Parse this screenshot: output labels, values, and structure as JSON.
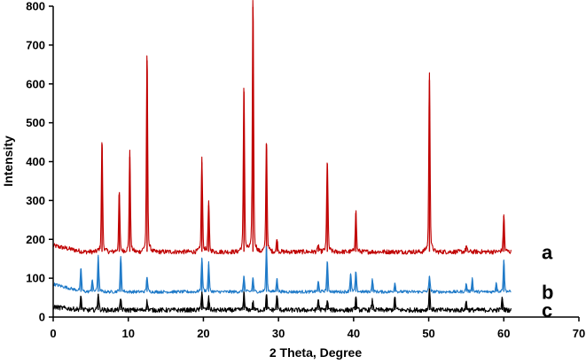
{
  "chart_data": {
    "type": "line",
    "title": "",
    "xlabel": "2 Theta, Degree",
    "ylabel": "Intensity",
    "xlim": [
      0,
      70
    ],
    "ylim": [
      0,
      800
    ],
    "x_ticks": [
      0,
      10,
      20,
      30,
      40,
      50,
      60,
      70
    ],
    "y_ticks": [
      0,
      100,
      200,
      300,
      400,
      500,
      600,
      700,
      800
    ],
    "grid": false,
    "legend": "inline labels at right end of each trace",
    "series": [
      {
        "name": "a",
        "color": "#c00000",
        "baseline": 168,
        "x_range": [
          0,
          61
        ],
        "peaks": [
          {
            "x": 6.5,
            "y": 445
          },
          {
            "x": 8.8,
            "y": 315
          },
          {
            "x": 10.2,
            "y": 412
          },
          {
            "x": 12.5,
            "y": 660
          },
          {
            "x": 19.8,
            "y": 398
          },
          {
            "x": 20.7,
            "y": 287
          },
          {
            "x": 25.4,
            "y": 580
          },
          {
            "x": 26.6,
            "y": 798
          },
          {
            "x": 28.4,
            "y": 445
          },
          {
            "x": 29.8,
            "y": 200
          },
          {
            "x": 35.3,
            "y": 185
          },
          {
            "x": 36.5,
            "y": 395
          },
          {
            "x": 40.3,
            "y": 268
          },
          {
            "x": 50.1,
            "y": 610
          },
          {
            "x": 55.0,
            "y": 182
          },
          {
            "x": 60.0,
            "y": 260
          }
        ]
      },
      {
        "name": "b",
        "color": "#1f7ac8",
        "baseline": 65,
        "x_range": [
          0,
          61
        ],
        "peaks": [
          {
            "x": 3.7,
            "y": 122
          },
          {
            "x": 5.2,
            "y": 95
          },
          {
            "x": 6.0,
            "y": 155
          },
          {
            "x": 9.0,
            "y": 150
          },
          {
            "x": 12.5,
            "y": 103
          },
          {
            "x": 19.8,
            "y": 150
          },
          {
            "x": 20.7,
            "y": 135
          },
          {
            "x": 25.4,
            "y": 105
          },
          {
            "x": 26.6,
            "y": 100
          },
          {
            "x": 28.4,
            "y": 175
          },
          {
            "x": 29.8,
            "y": 100
          },
          {
            "x": 35.3,
            "y": 90
          },
          {
            "x": 36.5,
            "y": 140
          },
          {
            "x": 39.6,
            "y": 110
          },
          {
            "x": 40.3,
            "y": 115
          },
          {
            "x": 42.5,
            "y": 95
          },
          {
            "x": 45.5,
            "y": 88
          },
          {
            "x": 50.1,
            "y": 105
          },
          {
            "x": 55.0,
            "y": 85
          },
          {
            "x": 55.8,
            "y": 98
          },
          {
            "x": 59.0,
            "y": 88
          },
          {
            "x": 60.0,
            "y": 145
          }
        ]
      },
      {
        "name": "c",
        "color": "#000000",
        "baseline": 18,
        "x_range": [
          0,
          61
        ],
        "peaks": [
          {
            "x": 3.7,
            "y": 50
          },
          {
            "x": 6.0,
            "y": 60
          },
          {
            "x": 9.0,
            "y": 45
          },
          {
            "x": 12.5,
            "y": 40
          },
          {
            "x": 19.8,
            "y": 65
          },
          {
            "x": 20.7,
            "y": 48
          },
          {
            "x": 25.4,
            "y": 60
          },
          {
            "x": 26.6,
            "y": 38
          },
          {
            "x": 28.4,
            "y": 55
          },
          {
            "x": 29.8,
            "y": 55
          },
          {
            "x": 35.3,
            "y": 45
          },
          {
            "x": 36.5,
            "y": 42
          },
          {
            "x": 40.3,
            "y": 50
          },
          {
            "x": 42.5,
            "y": 42
          },
          {
            "x": 45.5,
            "y": 50
          },
          {
            "x": 50.1,
            "y": 70
          },
          {
            "x": 55.0,
            "y": 40
          },
          {
            "x": 59.8,
            "y": 48
          }
        ]
      }
    ]
  }
}
